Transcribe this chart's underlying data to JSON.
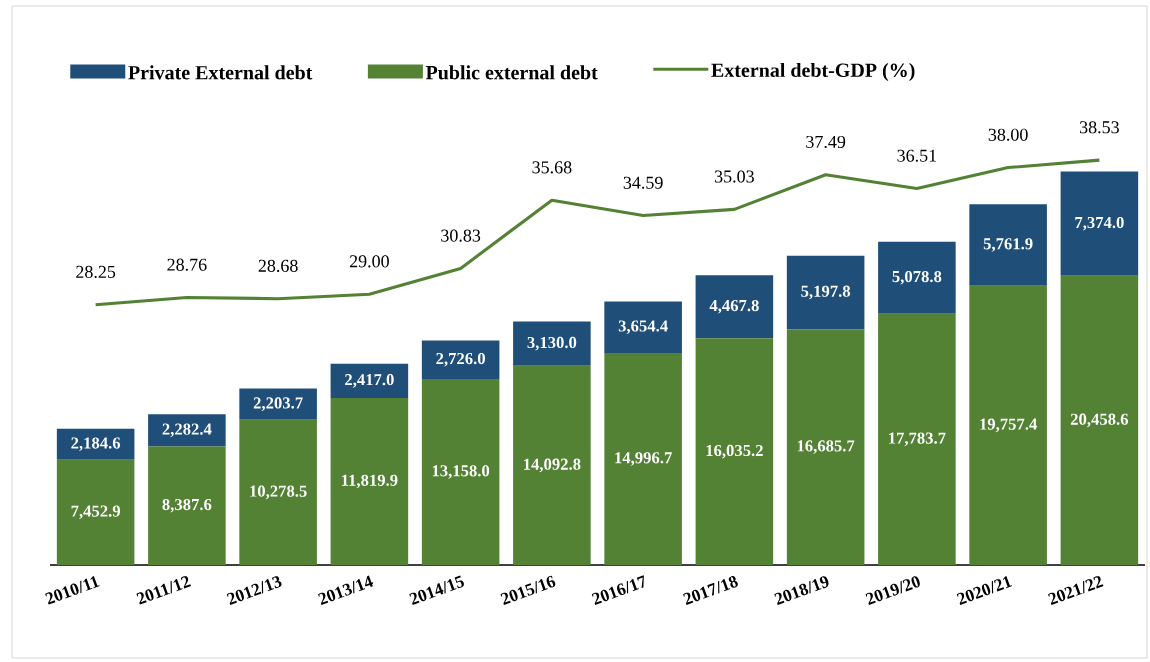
{
  "chart_data": {
    "type": "bar",
    "stacked": true,
    "legend": "top",
    "marker": "none",
    "line_style": "solid",
    "categories": [
      "2010/11",
      "2011/12",
      "2012/13",
      "2013/14",
      "2014/15",
      "2015/16",
      "2016/17",
      "2017/18",
      "2018/19",
      "2019/20",
      "2020/21",
      "2021/22"
    ],
    "series": [
      {
        "name": "Public external debt",
        "color": "#548235",
        "values": [
          7452.9,
          8387.6,
          10278.5,
          11819.9,
          13158.0,
          14092.8,
          14996.7,
          16035.2,
          16685.7,
          17783.7,
          19757.4,
          20458.6
        ],
        "value_labels": [
          "7,452.9",
          "8,387.6",
          "10,278.5",
          "11,819.9",
          "13,158.0",
          "14,092.8",
          "14,996.7",
          "16,035.2",
          "16,685.7",
          "17,783.7",
          "19,757.4",
          "20,458.6"
        ]
      },
      {
        "name": "Private External debt",
        "color": "#1f4e79",
        "values": [
          2184.6,
          2282.4,
          2203.7,
          2417.0,
          2726.0,
          3130.0,
          3654.4,
          4467.8,
          5197.8,
          5078.8,
          5761.9,
          7374.0
        ],
        "value_labels": [
          "2,184.6",
          "2,282.4",
          "2,203.7",
          "2,417.0",
          "2,726.0",
          "3,130.0",
          "3,654.4",
          "4,467.8",
          "5,197.8",
          "5,078.8",
          "5,761.9",
          "7,374.0"
        ]
      },
      {
        "name": "External debt-GDP (%)",
        "type": "line",
        "axis": "y2",
        "color": "#548235",
        "values": [
          28.25,
          28.76,
          28.68,
          29.0,
          30.83,
          35.68,
          34.59,
          35.03,
          37.49,
          36.51,
          38.0,
          38.53
        ],
        "value_labels": [
          "28.25",
          "28.76",
          "28.68",
          "29.00",
          "30.83",
          "35.68",
          "34.59",
          "35.03",
          "37.49",
          "36.51",
          "38.00",
          "38.53"
        ]
      }
    ]
  }
}
